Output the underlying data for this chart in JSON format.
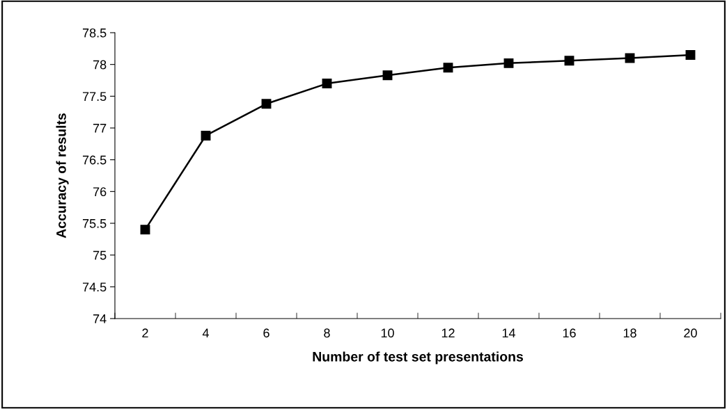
{
  "chart_data": {
    "type": "line",
    "xlabel": "Number of test set presentations",
    "ylabel": "Accuracy of results",
    "categories": [
      "2",
      "4",
      "6",
      "8",
      "10",
      "12",
      "14",
      "16",
      "18",
      "20"
    ],
    "series": [
      {
        "color": "#000000",
        "values": [
          75.4,
          76.88,
          77.38,
          77.7,
          77.83,
          77.95,
          78.02,
          78.06,
          78.1,
          78.15
        ]
      }
    ],
    "ylim": [
      74,
      78.5
    ],
    "yticks": [
      74,
      74.5,
      75,
      75.5,
      76,
      76.5,
      77,
      77.5,
      78,
      78.5
    ],
    "grid": false,
    "marker": "square",
    "line_style": "solid"
  }
}
